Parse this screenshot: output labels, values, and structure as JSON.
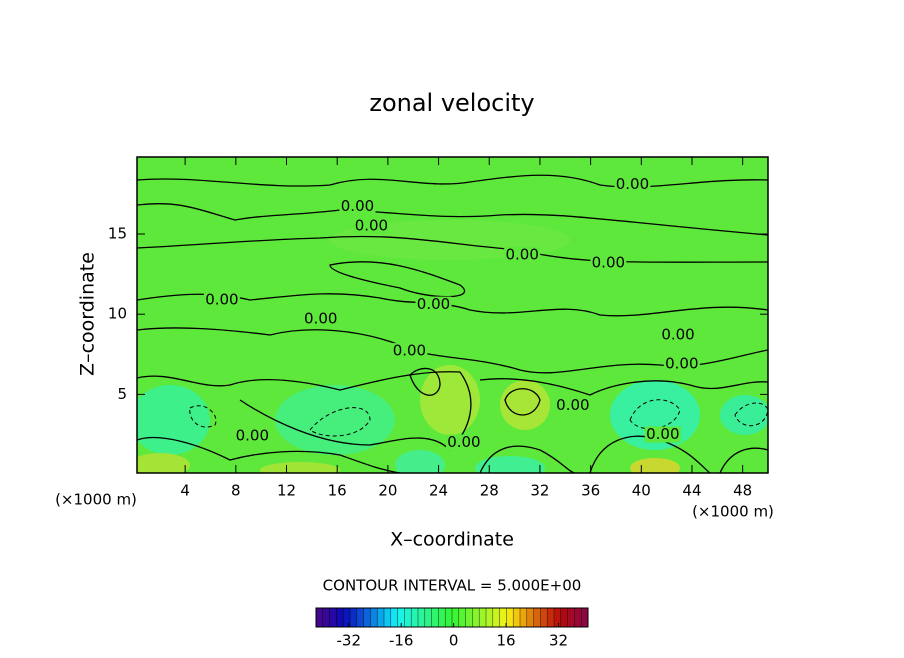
{
  "chart_data": {
    "type": "contour",
    "title": "zonal velocity",
    "xlabel": "X–coordinate",
    "ylabel": "Z–coordinate",
    "x_unit_label": "(×1000 m)",
    "y_unit_label": "(×1000 m)",
    "xlim": [
      0.2,
      50
    ],
    "ylim": [
      0.1,
      19.8
    ],
    "xticks": [
      4,
      8,
      12,
      16,
      20,
      24,
      28,
      32,
      36,
      40,
      44,
      48
    ],
    "yticks": [
      5,
      10,
      15
    ],
    "contour_interval_label": "CONTOUR INTERVAL = 5.000E+00",
    "contour_labels": [
      {
        "value": 0,
        "label": "0.00",
        "x": 39.3,
        "y": 18.1
      },
      {
        "value": 0,
        "label": "0.00",
        "x": 17.6,
        "y": 16.7
      },
      {
        "value": 0,
        "label": "0.00",
        "x": 18.7,
        "y": 15.5
      },
      {
        "value": 0,
        "label": "0.00",
        "x": 30.6,
        "y": 13.7
      },
      {
        "value": 0,
        "label": "0.00",
        "x": 37.4,
        "y": 13.2
      },
      {
        "value": 0,
        "label": "0.00",
        "x": 6.9,
        "y": 10.9
      },
      {
        "value": 0,
        "label": "0.00",
        "x": 14.7,
        "y": 9.7
      },
      {
        "value": 0,
        "label": "0.00",
        "x": 23.6,
        "y": 10.6
      },
      {
        "value": 0,
        "label": "0.00",
        "x": 42.9,
        "y": 8.7
      },
      {
        "value": 0,
        "label": "0.00",
        "x": 21.7,
        "y": 7.7
      },
      {
        "value": 0,
        "label": "0.00",
        "x": 43.2,
        "y": 6.9
      },
      {
        "value": 0,
        "label": "0.00",
        "x": 34.6,
        "y": 4.3
      },
      {
        "value": 0,
        "label": "0.00",
        "x": 41.7,
        "y": 2.5
      },
      {
        "value": 0,
        "label": "0.00",
        "x": 9.3,
        "y": 2.4
      },
      {
        "value": 0,
        "label": "0.00",
        "x": 26.0,
        "y": 2.0
      }
    ],
    "colorbar": {
      "lim": [
        -42,
        41
      ],
      "ticks": [
        -32,
        -16,
        0,
        16,
        32
      ]
    }
  }
}
